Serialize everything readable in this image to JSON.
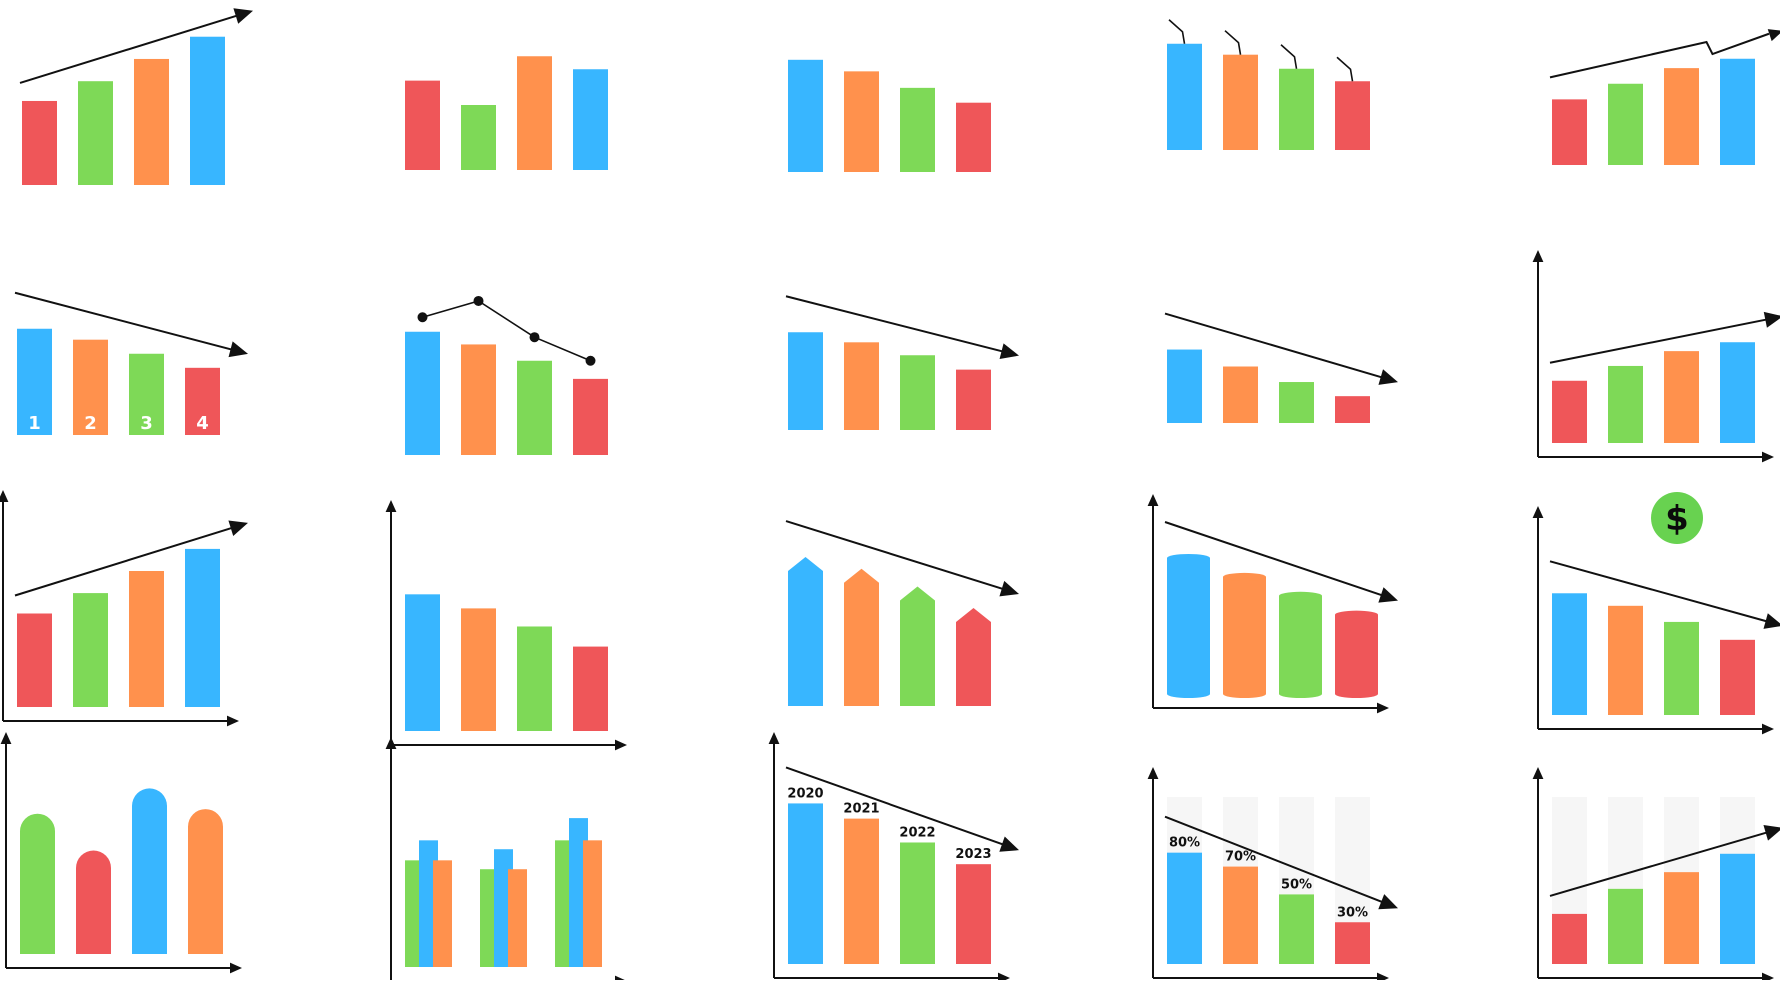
{
  "palette": {
    "red": "#EF5659",
    "green": "#7ED957",
    "orange": "#FF914D",
    "blue": "#38B6FF",
    "ink": "#111111",
    "icon": "#68D250"
  },
  "icons": {
    "dollar": "$"
  },
  "chart_data": [
    {
      "id": "c1",
      "type": "bar",
      "colors": [
        "red",
        "green",
        "orange",
        "blue"
      ],
      "values": [
        3.4,
        4.2,
        5.1,
        6.0
      ],
      "ylim": [
        0,
        7
      ],
      "trend": "up"
    },
    {
      "id": "c2",
      "type": "bar",
      "colors": [
        "red",
        "green",
        "orange",
        "blue"
      ],
      "values": [
        5.5,
        4.0,
        7.0,
        6.2
      ],
      "ylim": [
        0,
        8
      ]
    },
    {
      "id": "c3",
      "type": "bar",
      "colors": [
        "blue",
        "orange",
        "green",
        "red"
      ],
      "values": [
        6.8,
        6.1,
        5.1,
        4.2
      ],
      "ylim": [
        0,
        8
      ]
    },
    {
      "id": "c4",
      "type": "bar",
      "colors": [
        "blue",
        "orange",
        "green",
        "red"
      ],
      "values": [
        6.8,
        6.1,
        5.2,
        4.4
      ],
      "ylim": [
        0,
        8
      ],
      "candlestick": true
    },
    {
      "id": "c5",
      "type": "bar",
      "colors": [
        "red",
        "green",
        "orange",
        "blue"
      ],
      "values": [
        4.2,
        5.2,
        6.2,
        6.8
      ],
      "ylim": [
        0,
        8
      ],
      "trend": "up-zigzag"
    },
    {
      "id": "c6",
      "type": "bar",
      "colors": [
        "blue",
        "orange",
        "green",
        "red"
      ],
      "values": [
        6.8,
        6.1,
        5.2,
        4.3
      ],
      "ylim": [
        0,
        8
      ],
      "labels": [
        "1",
        "2",
        "3",
        "4"
      ],
      "trend": "down"
    },
    {
      "id": "c7",
      "type": "bar",
      "colors": [
        "blue",
        "orange",
        "green",
        "red"
      ],
      "values": [
        6.8,
        6.1,
        5.2,
        4.2
      ],
      "ylim": [
        0,
        8
      ],
      "line_overlay": [
        7.6,
        8.5,
        6.5,
        5.2
      ]
    },
    {
      "id": "c8",
      "type": "bar",
      "colors": [
        "blue",
        "orange",
        "green",
        "red"
      ],
      "values": [
        6.8,
        6.1,
        5.2,
        4.2
      ],
      "ylim": [
        0,
        8
      ],
      "trend": "down"
    },
    {
      "id": "c9",
      "type": "bar",
      "colors": [
        "blue",
        "orange",
        "green",
        "red"
      ],
      "values": [
        5.2,
        4.0,
        2.9,
        1.9
      ],
      "ylim": [
        0,
        8
      ],
      "trend": "down"
    },
    {
      "id": "c10",
      "type": "bar",
      "colors": [
        "red",
        "green",
        "orange",
        "blue"
      ],
      "values": [
        4.2,
        5.2,
        6.2,
        6.8
      ],
      "ylim": [
        0,
        11
      ],
      "axes": true,
      "trend": "up"
    },
    {
      "id": "c11",
      "type": "bar",
      "colors": [
        "red",
        "green",
        "orange",
        "blue"
      ],
      "values": [
        5.5,
        6.7,
        8.0,
        9.3
      ],
      "ylim": [
        0,
        11
      ],
      "axes": true,
      "trend": "up"
    },
    {
      "id": "c12",
      "type": "bar",
      "colors": [
        "blue",
        "orange",
        "green",
        "red"
      ],
      "values": [
        6.8,
        6.1,
        5.2,
        4.2
      ],
      "ylim": [
        0,
        10
      ],
      "axes": true
    },
    {
      "id": "c13",
      "type": "bar",
      "colors": [
        "blue",
        "orange",
        "green",
        "red"
      ],
      "values": [
        7.6,
        7.0,
        6.1,
        5.0
      ],
      "ylim": [
        0,
        10
      ],
      "arrow_bars": true,
      "trend": "down"
    },
    {
      "id": "c14",
      "type": "bar",
      "colors": [
        "blue",
        "orange",
        "green",
        "red"
      ],
      "values": [
        7.2,
        6.2,
        5.2,
        4.2
      ],
      "ylim": [
        0,
        9
      ],
      "axes": true,
      "cylinder": true,
      "trend": "down"
    },
    {
      "id": "c15",
      "type": "bar",
      "colors": [
        "blue",
        "orange",
        "green",
        "red"
      ],
      "values": [
        6.8,
        6.1,
        5.2,
        4.2
      ],
      "ylim": [
        0,
        10
      ],
      "axes": true,
      "trend": "down",
      "icon": "dollar"
    },
    {
      "id": "c16",
      "type": "bar",
      "colors": [
        "green",
        "red",
        "blue",
        "orange"
      ],
      "values": [
        6.1,
        4.5,
        7.2,
        6.3
      ],
      "ylim": [
        0,
        9
      ],
      "axes": true,
      "rounded": true
    },
    {
      "id": "c17",
      "type": "bar",
      "colors": [
        "green",
        "blue",
        "orange"
      ],
      "groups": [
        [
          4.8,
          5.7,
          4.8
        ],
        [
          4.4,
          5.3,
          4.4
        ],
        [
          5.7,
          6.7,
          5.7
        ]
      ],
      "ylim": [
        0,
        9
      ],
      "axes": true
    },
    {
      "id": "c18",
      "type": "bar",
      "colors": [
        "blue",
        "orange",
        "green",
        "red"
      ],
      "categories": [
        "2020",
        "2021",
        "2022",
        "2023"
      ],
      "values": [
        7.4,
        6.7,
        5.6,
        4.6
      ],
      "ylim": [
        0,
        10
      ],
      "axes": true,
      "trend": "down"
    },
    {
      "id": "c19",
      "type": "bar",
      "colors": [
        "blue",
        "orange",
        "green",
        "red"
      ],
      "categories": [
        "80%",
        "70%",
        "50%",
        "30%"
      ],
      "values": [
        80,
        70,
        50,
        30
      ],
      "ylim": [
        0,
        120
      ],
      "axes": true,
      "trend": "down",
      "show_track": true
    },
    {
      "id": "c20",
      "type": "bar",
      "colors": [
        "red",
        "green",
        "orange",
        "blue"
      ],
      "values": [
        30,
        45,
        55,
        66
      ],
      "ylim": [
        0,
        100
      ],
      "axes": true,
      "trend": "up",
      "show_track": true
    }
  ]
}
